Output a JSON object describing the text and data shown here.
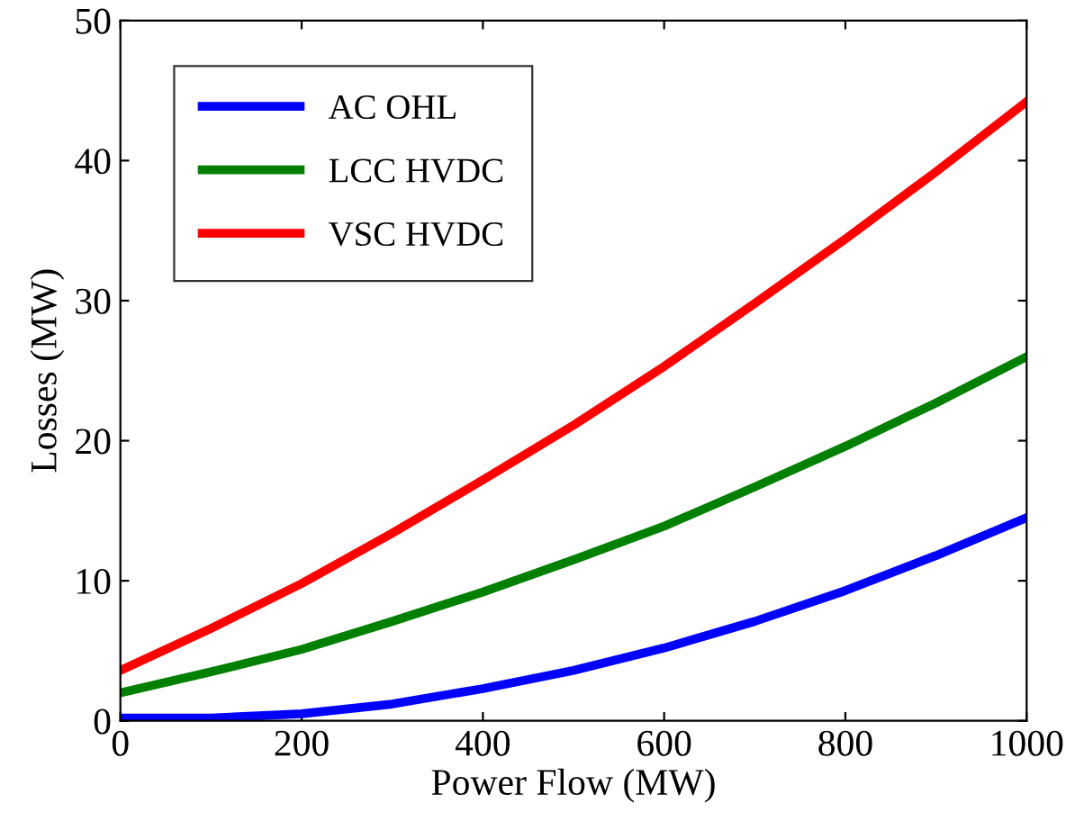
{
  "chart_data": {
    "type": "line",
    "xlabel": "Power Flow (MW)",
    "ylabel": "Losses (MW)",
    "x": [
      0,
      100,
      200,
      300,
      400,
      500,
      600,
      700,
      800,
      900,
      1000
    ],
    "series": [
      {
        "name": "AC OHL",
        "color": "#0000ff",
        "values": [
          0.2,
          0.2,
          0.5,
          1.2,
          2.3,
          3.6,
          5.2,
          7.1,
          9.3,
          11.8,
          14.5
        ]
      },
      {
        "name": "LCC HVDC",
        "color": "#008000",
        "values": [
          2.0,
          3.5,
          5.1,
          7.1,
          9.2,
          11.5,
          13.9,
          16.7,
          19.6,
          22.7,
          26.0
        ]
      },
      {
        "name": "VSC HVDC",
        "color": "#ff0000",
        "values": [
          3.6,
          6.6,
          9.8,
          13.4,
          17.2,
          21.1,
          25.3,
          29.8,
          34.4,
          39.2,
          44.2
        ]
      }
    ],
    "xlim": [
      0,
      1000
    ],
    "ylim": [
      0,
      50
    ],
    "xticks": [
      0,
      200,
      400,
      600,
      800,
      1000
    ],
    "yticks": [
      0,
      10,
      20,
      30,
      40,
      50
    ],
    "grid": false,
    "legend": "top left",
    "marker": "none",
    "line_style": "solid"
  }
}
